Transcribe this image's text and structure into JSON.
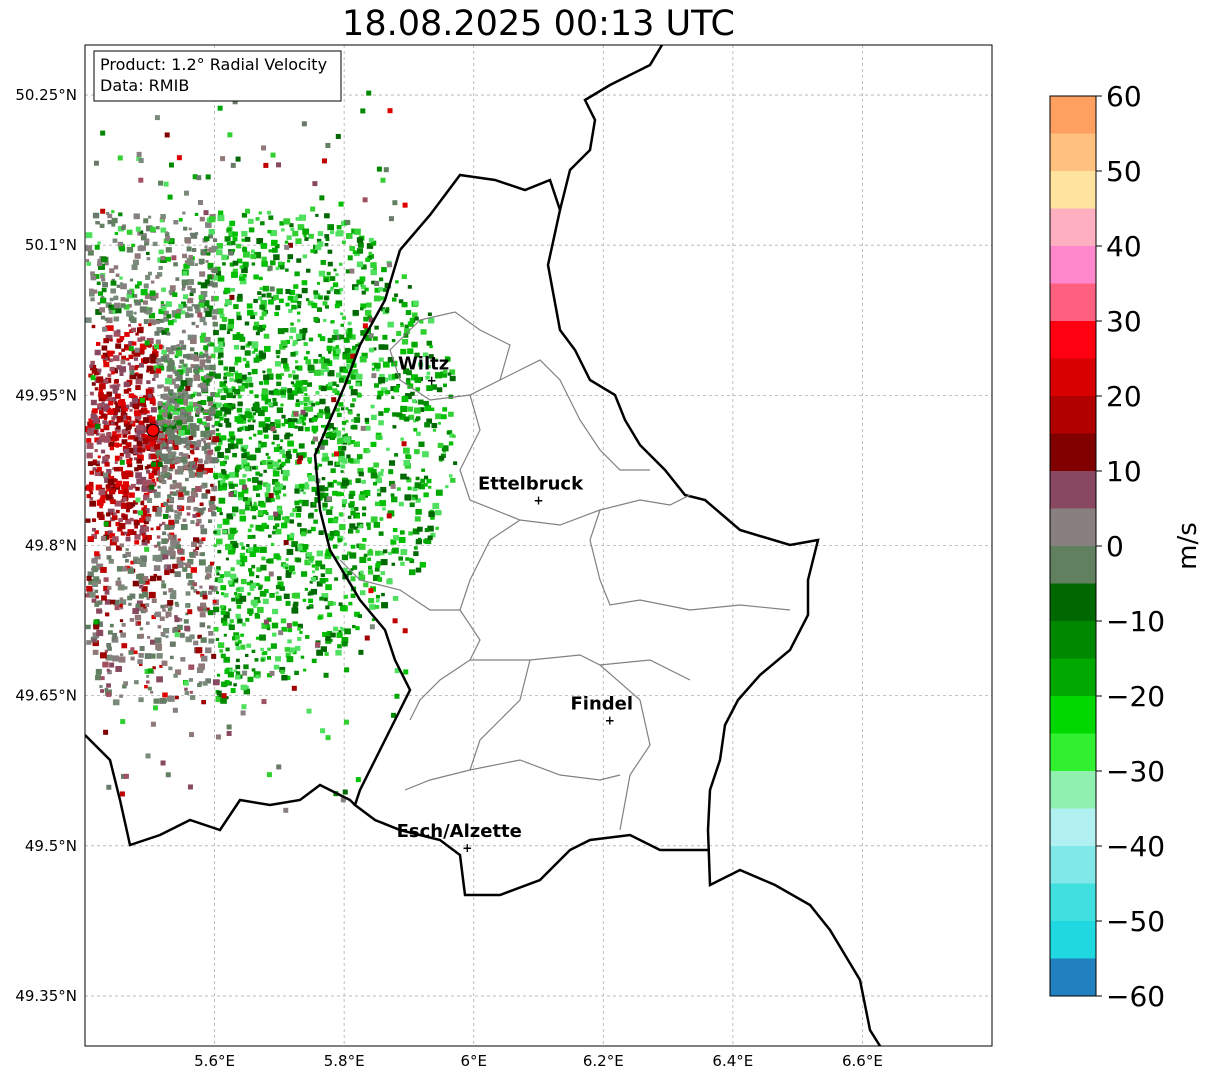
{
  "title": "18.08.2025 00:13 UTC",
  "info_box": {
    "product": "Product: 1.2° Radial Velocity",
    "source": "Data: RMIB"
  },
  "map": {
    "lon_range": [
      5.4,
      6.8
    ],
    "lat_range": [
      49.3,
      50.3
    ],
    "lat_ticks": [
      "50.25°N",
      "50.1°N",
      "49.95°N",
      "49.8°N",
      "49.65°N",
      "49.5°N",
      "49.35°N"
    ],
    "lat_tick_values": [
      50.25,
      50.1,
      49.95,
      49.8,
      49.65,
      49.5,
      49.35
    ],
    "lon_ticks": [
      "5.6°E",
      "5.8°E",
      "6°E",
      "6.2°E",
      "6.4°E",
      "6.6°E"
    ],
    "lon_tick_values": [
      5.6,
      5.8,
      6.0,
      6.2,
      6.4,
      6.6
    ],
    "gridlines": true,
    "radar_site": {
      "lon": 5.505,
      "lat": 49.915,
      "color": "#ff0000"
    },
    "cities": [
      {
        "name": "Wiltz",
        "lon": 5.935,
        "lat": 49.965
      },
      {
        "name": "Ettelbruck",
        "lon": 6.1,
        "lat": 49.845
      },
      {
        "name": "Findel",
        "lon": 6.21,
        "lat": 49.625
      },
      {
        "name": "Esch/Alzette",
        "lon": 5.99,
        "lat": 49.498
      }
    ]
  },
  "colorbar": {
    "label": "m/s",
    "range": [
      -60,
      60
    ],
    "ticks": [
      "60",
      "50",
      "40",
      "30",
      "20",
      "10",
      "0",
      "−10",
      "−20",
      "−30",
      "−40",
      "−50",
      "−60"
    ],
    "tick_values": [
      60,
      50,
      40,
      30,
      20,
      10,
      0,
      -10,
      -20,
      -30,
      -40,
      -50,
      -60
    ],
    "bands": [
      {
        "from": 55,
        "to": 60,
        "color": "#ffa060"
      },
      {
        "from": 50,
        "to": 55,
        "color": "#ffc080"
      },
      {
        "from": 45,
        "to": 50,
        "color": "#ffe4a0"
      },
      {
        "from": 40,
        "to": 45,
        "color": "#ffb0c0"
      },
      {
        "from": 35,
        "to": 40,
        "color": "#ff88cc"
      },
      {
        "from": 30,
        "to": 35,
        "color": "#ff6080"
      },
      {
        "from": 25,
        "to": 30,
        "color": "#ff0010"
      },
      {
        "from": 20,
        "to": 25,
        "color": "#d80000"
      },
      {
        "from": 15,
        "to": 20,
        "color": "#b00000"
      },
      {
        "from": 10,
        "to": 15,
        "color": "#800000"
      },
      {
        "from": 5,
        "to": 10,
        "color": "#884860"
      },
      {
        "from": 0,
        "to": 5,
        "color": "#888080"
      },
      {
        "from": -5,
        "to": 0,
        "color": "#608060"
      },
      {
        "from": -10,
        "to": -5,
        "color": "#006800"
      },
      {
        "from": -15,
        "to": -10,
        "color": "#008800"
      },
      {
        "from": -20,
        "to": -15,
        "color": "#00a800"
      },
      {
        "from": -25,
        "to": -20,
        "color": "#00d800"
      },
      {
        "from": -30,
        "to": -25,
        "color": "#30f030"
      },
      {
        "from": -35,
        "to": -30,
        "color": "#90f0b0"
      },
      {
        "from": -40,
        "to": -35,
        "color": "#b0f0f0"
      },
      {
        "from": -45,
        "to": -40,
        "color": "#80e8e8"
      },
      {
        "from": -50,
        "to": -45,
        "color": "#40e0e0"
      },
      {
        "from": -55,
        "to": -50,
        "color": "#20d8e0"
      },
      {
        "from": -60,
        "to": -55,
        "color": "#2080c0"
      }
    ]
  }
}
